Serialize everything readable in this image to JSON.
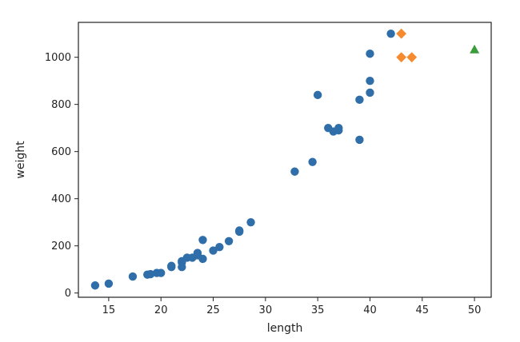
{
  "chart_data": {
    "type": "scatter",
    "xlabel": "length",
    "ylabel": "weight",
    "xlim": [
      12.1,
      51.6
    ],
    "ylim": [
      -18,
      1148
    ],
    "x_ticks": [
      15,
      20,
      25,
      30,
      35,
      40,
      45,
      50
    ],
    "y_ticks": [
      0,
      200,
      400,
      600,
      800,
      1000
    ],
    "grid": false,
    "series": [
      {
        "marker": "circle",
        "color": "#2f6ea9",
        "points": [
          [
            13.7,
            32
          ],
          [
            15.0,
            40
          ],
          [
            17.3,
            70
          ],
          [
            18.7,
            78
          ],
          [
            19.0,
            80
          ],
          [
            19.6,
            85
          ],
          [
            20.0,
            85
          ],
          [
            21.0,
            110
          ],
          [
            21.0,
            115
          ],
          [
            22.0,
            110
          ],
          [
            22.0,
            130
          ],
          [
            22.0,
            135
          ],
          [
            22.5,
            150
          ],
          [
            23.0,
            150
          ],
          [
            23.5,
            170
          ],
          [
            23.5,
            160
          ],
          [
            24.0,
            145
          ],
          [
            24.0,
            225
          ],
          [
            25.0,
            180
          ],
          [
            25.6,
            195
          ],
          [
            26.5,
            220
          ],
          [
            27.5,
            260
          ],
          [
            27.5,
            265
          ],
          [
            28.6,
            300
          ],
          [
            32.8,
            515
          ],
          [
            34.5,
            556
          ],
          [
            35.0,
            840
          ],
          [
            36.0,
            700
          ],
          [
            36.5,
            685
          ],
          [
            37.0,
            690
          ],
          [
            37.0,
            700
          ],
          [
            39.0,
            820
          ],
          [
            39.0,
            650
          ],
          [
            40.0,
            850
          ],
          [
            40.0,
            900
          ],
          [
            40.0,
            1015
          ],
          [
            42.0,
            1100
          ]
        ]
      },
      {
        "marker": "diamond",
        "color": "#f58a2e",
        "points": [
          [
            43.0,
            1100
          ],
          [
            43.0,
            1000
          ],
          [
            44.0,
            1000
          ]
        ]
      },
      {
        "marker": "triangle",
        "color": "#3a9c3a",
        "points": [
          [
            50.0,
            1033
          ]
        ]
      }
    ]
  }
}
